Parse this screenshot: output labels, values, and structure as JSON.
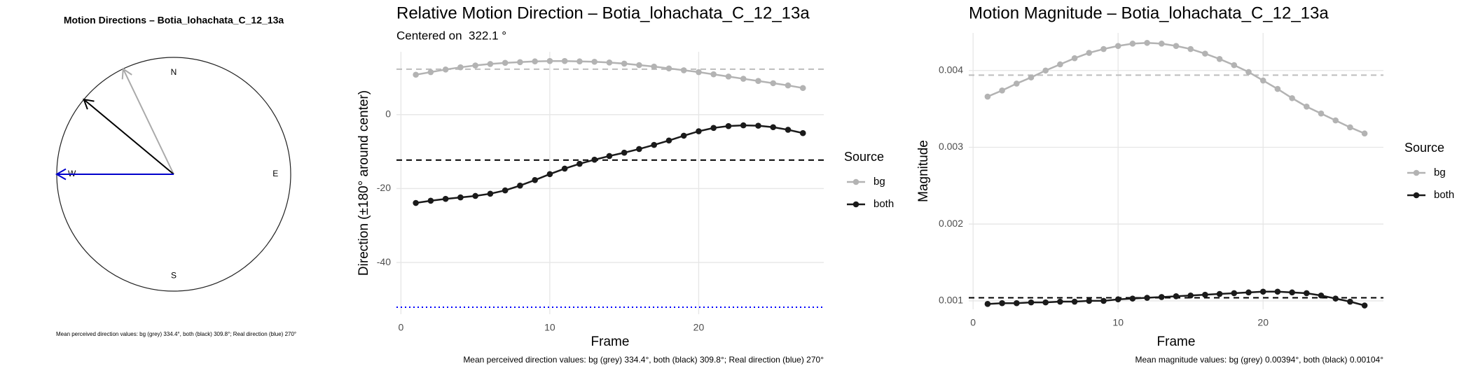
{
  "chart_data": [
    {
      "type": "compass",
      "title": "Motion Directions – Botia_lohachata_C_12_13a",
      "directions": [
        "N",
        "E",
        "S",
        "W"
      ],
      "series": [
        {
          "color": "#aaaaaa",
          "values": [
            334.4
          ]
        },
        {
          "color": "#000000",
          "values": [
            309.8
          ]
        },
        {
          "color": "#0000cc",
          "values": [
            270
          ]
        }
      ],
      "caption": "Mean perceived direction values: bg (grey) 334.4°, both (black) 309.8°; Real direction (blue) 270°"
    },
    {
      "type": "line",
      "title": "Relative Motion Direction – Botia_lohachata_C_12_13a",
      "subtitle": "Centered on  322.1 °",
      "xlabel": "Frame",
      "ylabel": "Direction (±180° around center)",
      "x": [
        1,
        2,
        3,
        4,
        5,
        6,
        7,
        8,
        9,
        10,
        11,
        12,
        13,
        14,
        15,
        16,
        17,
        18,
        19,
        20,
        21,
        22,
        23,
        24,
        25,
        26,
        27
      ],
      "series": [
        {
          "name": "bg",
          "color": "#b3b3b3",
          "values": [
            10.8,
            11.5,
            12.2,
            12.8,
            13.3,
            13.7,
            14.0,
            14.2,
            14.4,
            14.5,
            14.5,
            14.4,
            14.3,
            14.1,
            13.8,
            13.4,
            13.0,
            12.5,
            12.0,
            11.5,
            10.9,
            10.3,
            9.7,
            9.1,
            8.5,
            7.9,
            7.2
          ]
        },
        {
          "name": "both",
          "color": "#1a1a1a",
          "values": [
            -23.9,
            -23.3,
            -22.8,
            -22.4,
            -22.0,
            -21.4,
            -20.5,
            -19.2,
            -17.7,
            -16.1,
            -14.6,
            -13.3,
            -12.2,
            -11.2,
            -10.3,
            -9.3,
            -8.2,
            -7.0,
            -5.7,
            -4.5,
            -3.6,
            -3.1,
            -2.9,
            -3.0,
            -3.4,
            -4.1,
            -5.0
          ]
        }
      ],
      "hlines": [
        {
          "value": 12.3,
          "color": "#bdbdbd",
          "dash": "dashed"
        },
        {
          "value": -12.3,
          "color": "#000000",
          "dash": "dashed"
        },
        {
          "value": -52.1,
          "color": "#0000ff",
          "dash": "dotted"
        }
      ],
      "xlim": [
        -0.3,
        28.4
      ],
      "ylim": [
        -54,
        17
      ],
      "xticks": [
        0,
        10,
        20
      ],
      "yticks": [
        -40,
        -20,
        0
      ],
      "grid": true,
      "legend_title": "Source",
      "legend": "right",
      "caption": "Mean perceived direction values: bg (grey) 334.4°, both (black) 309.8°; Real direction (blue) 270°"
    },
    {
      "type": "line",
      "title": "Motion Magnitude – Botia_lohachata_C_12_13a",
      "xlabel": "Frame",
      "ylabel": "Magnitude",
      "x": [
        1,
        2,
        3,
        4,
        5,
        6,
        7,
        8,
        9,
        10,
        11,
        12,
        13,
        14,
        15,
        16,
        17,
        18,
        19,
        20,
        21,
        22,
        23,
        24,
        25,
        26,
        27
      ],
      "series": [
        {
          "name": "bg",
          "color": "#b3b3b3",
          "values": [
            0.00366,
            0.00374,
            0.00383,
            0.00391,
            0.004,
            0.00408,
            0.00416,
            0.00423,
            0.00428,
            0.00432,
            0.00435,
            0.00436,
            0.00435,
            0.00432,
            0.00428,
            0.00422,
            0.00415,
            0.00407,
            0.00398,
            0.00387,
            0.00376,
            0.00364,
            0.00353,
            0.00344,
            0.00335,
            0.00326,
            0.00318
          ]
        },
        {
          "name": "both",
          "color": "#1a1a1a",
          "values": [
            0.00096,
            0.00097,
            0.00097,
            0.00098,
            0.00098,
            0.00099,
            0.00099,
            0.001,
            0.001,
            0.00102,
            0.00103,
            0.00104,
            0.00105,
            0.00106,
            0.00107,
            0.00108,
            0.00109,
            0.0011,
            0.00111,
            0.00112,
            0.00112,
            0.00111,
            0.0011,
            0.00107,
            0.00103,
            0.00099,
            0.00094
          ]
        }
      ],
      "hlines": [
        {
          "value": 0.00394,
          "color": "#bdbdbd",
          "dash": "dashed"
        },
        {
          "value": 0.00104,
          "color": "#000000",
          "dash": "dashed"
        }
      ],
      "xlim": [
        -0.3,
        28.3
      ],
      "ylim": [
        0.00089,
        0.00449
      ],
      "xticks": [
        0,
        10,
        20
      ],
      "yticks": [
        0.001,
        0.002,
        0.003,
        0.004
      ],
      "grid": true,
      "legend_title": "Source",
      "legend": "right",
      "caption": "Mean magnitude values: bg (grey) 0.00394°, both (black) 0.00104°"
    }
  ]
}
